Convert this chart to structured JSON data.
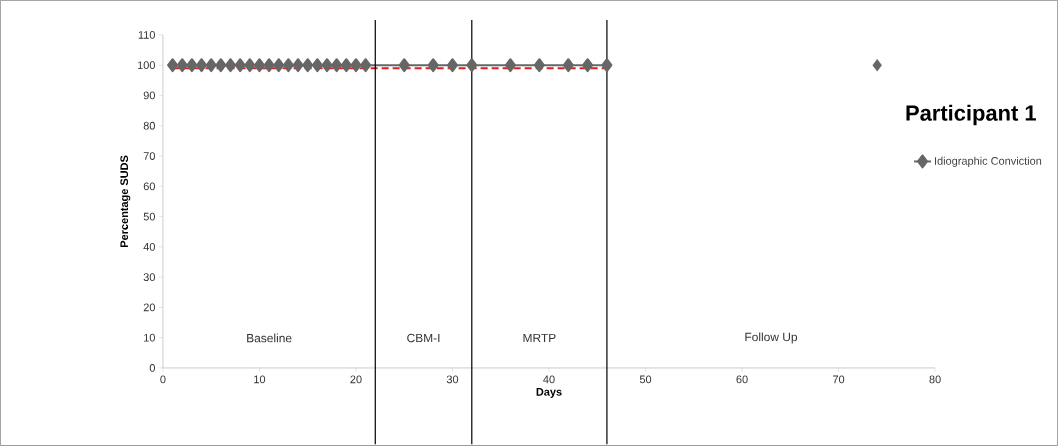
{
  "chart_data": {
    "type": "line",
    "title": "Participant 1",
    "xlabel": "Days",
    "ylabel": "Percentage SUDS",
    "xlim": [
      0,
      80
    ],
    "xticks": [
      0,
      10,
      20,
      30,
      40,
      50,
      60,
      70,
      80
    ],
    "ylim": [
      0,
      110
    ],
    "yticks": [
      0,
      10,
      20,
      30,
      40,
      50,
      60,
      70,
      80,
      90,
      100,
      110
    ],
    "marker": "diamond",
    "grid": false,
    "legend": "right",
    "series": [
      {
        "name": "Idiographic Conviction",
        "color": "#666666",
        "x": [
          1,
          2,
          3,
          4,
          5,
          6,
          7,
          8,
          9,
          10,
          11,
          12,
          13,
          14,
          15,
          16,
          17,
          18,
          19,
          20,
          21,
          25,
          28,
          30,
          32,
          36,
          39,
          42,
          44,
          46
        ],
        "values": [
          100,
          100,
          100,
          100,
          100,
          100,
          100,
          100,
          100,
          100,
          100,
          100,
          100,
          100,
          100,
          100,
          100,
          100,
          100,
          100,
          100,
          100,
          100,
          100,
          100,
          100,
          100,
          100,
          100,
          100
        ]
      },
      {
        "type": "scatter",
        "color": "#666666",
        "x": [
          74
        ],
        "values": [
          100
        ]
      },
      {
        "type": "line",
        "color": "#e02020",
        "line_style": "dashed",
        "marker": "none",
        "x": [
          1,
          46
        ],
        "values": [
          99,
          99
        ]
      }
    ],
    "ref_lines": [
      {
        "axis": "x",
        "value": 22,
        "color": "#000000"
      },
      {
        "axis": "x",
        "value": 32,
        "color": "#000000"
      },
      {
        "axis": "x",
        "value": 46,
        "color": "#000000"
      }
    ],
    "annotations": [
      "Baseline",
      "CBM-I",
      "MRTP",
      "Follow Up"
    ]
  }
}
